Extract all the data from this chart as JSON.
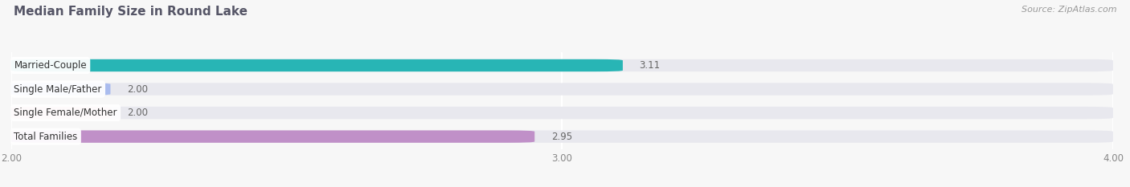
{
  "title": "Median Family Size in Round Lake",
  "source": "Source: ZipAtlas.com",
  "categories": [
    "Married-Couple",
    "Single Male/Father",
    "Single Female/Mother",
    "Total Families"
  ],
  "values": [
    3.11,
    2.0,
    2.0,
    2.95
  ],
  "colors": [
    "#28b5b5",
    "#aabcee",
    "#f5a8bc",
    "#c090c8"
  ],
  "xlim": [
    2.0,
    4.0
  ],
  "xticks": [
    2.0,
    3.0,
    4.0
  ],
  "bar_height": 0.52,
  "background_color": "#f7f7f7",
  "bar_bg_color": "#e8e8ee",
  "label_min_stub": 0.18
}
